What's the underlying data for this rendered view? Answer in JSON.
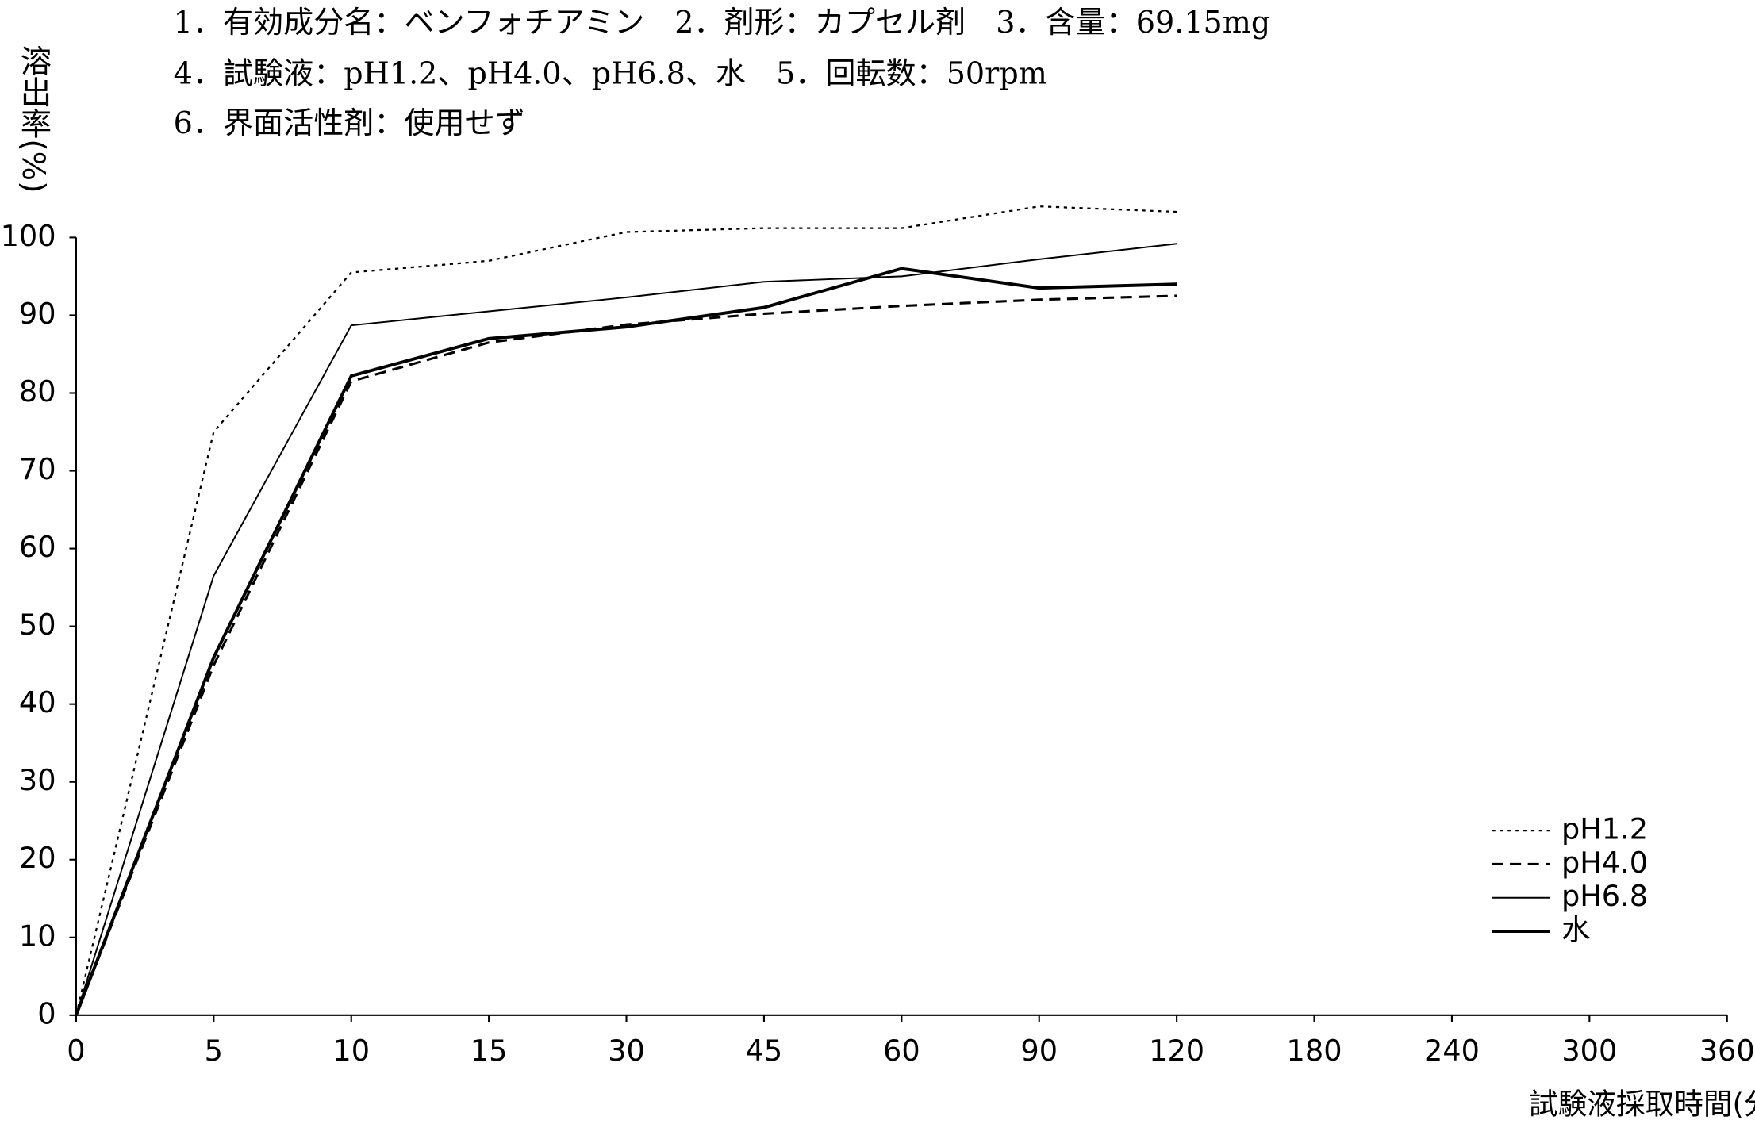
{
  "chart_data": {
    "type": "line",
    "annotations": [
      "1．有効成分名：ベンフォチアミン　2．剤形：カプセル剤　3．含量：69.15mg",
      "4．試験液：pH1.2、pH4.0、pH6.8、水　5．回転数：50rpm",
      "6．界面活性剤：使用せず"
    ],
    "y_label": "溶出率(%)",
    "x_label": "試験液採取時間(分)",
    "categories": [
      0,
      5,
      10,
      15,
      30,
      45,
      60,
      90,
      120,
      180,
      240,
      300,
      360
    ],
    "series": [
      {
        "name": "pH1.2",
        "color": "#000000",
        "dash": "3,4",
        "width": 1.6,
        "values": [
          0,
          75,
          95.5,
          97,
          100.7,
          101.2,
          101.2,
          104,
          103.3,
          null,
          null,
          null,
          null
        ]
      },
      {
        "name": "pH4.0",
        "color": "#000000",
        "dash": "10,6",
        "width": 2.2,
        "values": [
          0,
          45,
          81.5,
          86.5,
          88.8,
          90.2,
          91.2,
          92,
          92.5,
          null,
          null,
          null,
          null
        ]
      },
      {
        "name": "pH6.8",
        "color": "#000000",
        "dash": "none",
        "width": 1.4,
        "values": [
          0,
          56.5,
          88.7,
          90.5,
          92.3,
          94.3,
          95,
          97.2,
          99.2,
          null,
          null,
          null,
          null
        ]
      },
      {
        "name": "水",
        "color": "#000000",
        "dash": "none",
        "width": 2.8,
        "values": [
          0,
          46,
          82.2,
          87,
          88.5,
          91,
          96,
          93.5,
          94,
          null,
          null,
          null,
          null
        ]
      }
    ],
    "ylim": [
      0,
      100
    ],
    "yticks": [
      0,
      10,
      20,
      30,
      40,
      50,
      60,
      70,
      80,
      90,
      100
    ],
    "grid": false,
    "legend": "lower right"
  }
}
